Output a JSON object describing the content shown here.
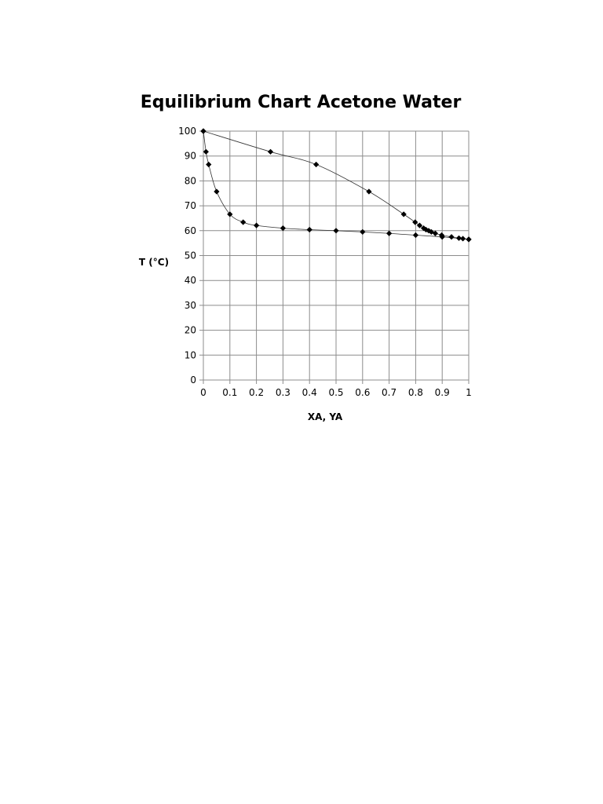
{
  "chart_data": {
    "type": "scatter",
    "title": "Equilibrium Chart Acetone Water",
    "xlabel": "XA, YA",
    "ylabel": "T (°C)",
    "xlim": [
      0,
      1
    ],
    "ylim": [
      0,
      100
    ],
    "x_ticks": [
      "0",
      "0.1",
      "0.2",
      "0.3",
      "0.4",
      "0.5",
      "0.6",
      "0.7",
      "0.8",
      "0.9",
      "1"
    ],
    "y_ticks": [
      "0",
      "10",
      "20",
      "30",
      "40",
      "50",
      "60",
      "70",
      "80",
      "90",
      "100"
    ],
    "grid": true,
    "legend": "none",
    "marker": "diamond",
    "series": [
      {
        "x": [
          0,
          0.01,
          0.02,
          0.05,
          0.1,
          0.15,
          0.2,
          0.3,
          0.4,
          0.5,
          0.6,
          0.7,
          0.8,
          0.9,
          1.0
        ],
        "y": [
          100,
          91.7,
          86.6,
          75.7,
          66.6,
          63.4,
          62.1,
          61.0,
          60.4,
          60.0,
          59.5,
          58.9,
          58.2,
          57.5,
          56.5
        ]
      },
      {
        "x": [
          0,
          0.253,
          0.425,
          0.624,
          0.755,
          0.798,
          0.815,
          0.83,
          0.839,
          0.849,
          0.859,
          0.874,
          0.898,
          0.935,
          0.963,
          0.978,
          1.0
        ],
        "y": [
          100,
          91.7,
          86.6,
          75.7,
          66.6,
          63.4,
          62.1,
          61.0,
          60.4,
          60.0,
          59.5,
          58.9,
          58.2,
          57.5,
          57.0,
          56.8,
          56.5
        ]
      }
    ]
  }
}
